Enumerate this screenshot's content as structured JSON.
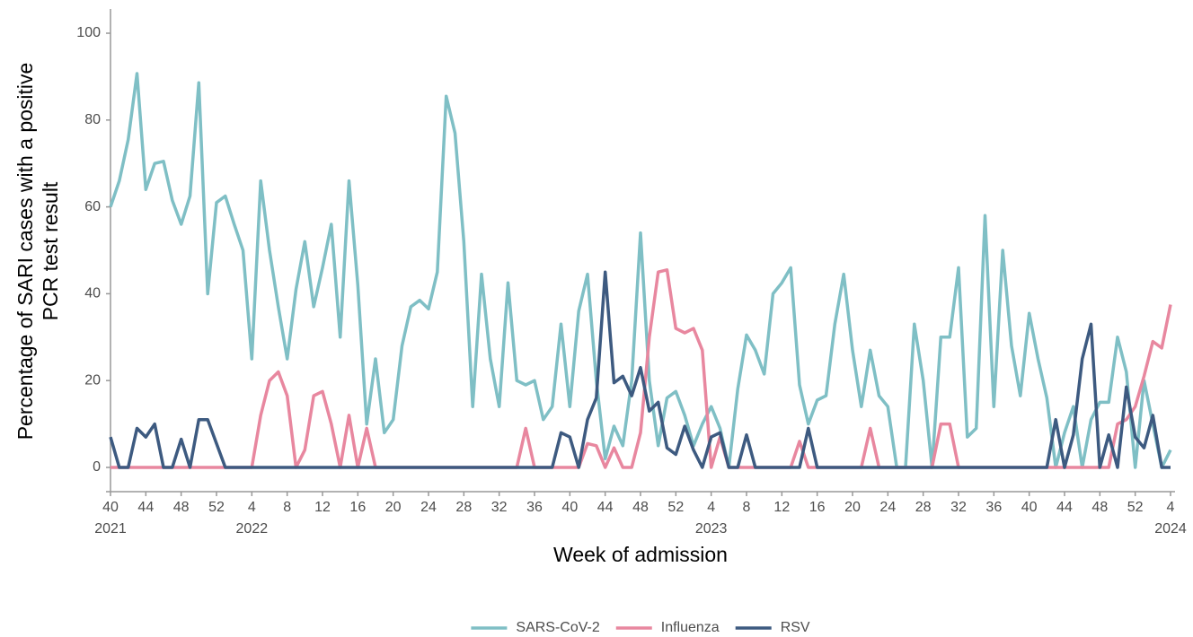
{
  "chart_data": {
    "type": "line",
    "ylabel": [
      "Percentage of SARI cases with a positive",
      "PCR test result"
    ],
    "xlabel": "Week of admission",
    "categories": [
      "40",
      null,
      null,
      null,
      "44",
      null,
      null,
      null,
      "48",
      null,
      null,
      null,
      "52",
      null,
      null,
      null,
      "4",
      null,
      null,
      null,
      "8",
      null,
      null,
      null,
      "12",
      null,
      null,
      null,
      "16",
      null,
      null,
      null,
      "20",
      null,
      null,
      null,
      "24",
      null,
      null,
      null,
      "28",
      null,
      null,
      null,
      "32",
      null,
      null,
      null,
      "36",
      null,
      null,
      null,
      "40",
      null,
      null,
      null,
      "44",
      null,
      null,
      null,
      "48",
      null,
      null,
      null,
      "52",
      null,
      null,
      null,
      "4",
      null,
      null,
      null,
      "8",
      null,
      null,
      null,
      "12",
      null,
      null,
      null,
      "16",
      null,
      null,
      null,
      "20",
      null,
      null,
      null,
      "24",
      null,
      null,
      null,
      "28",
      null,
      null,
      null,
      "32",
      null,
      null,
      null,
      "36",
      null,
      null,
      null,
      "40",
      null,
      null,
      null,
      "44",
      null,
      null,
      null,
      "48",
      null,
      null,
      null,
      "52",
      null,
      null,
      null,
      "4"
    ],
    "year_labels": [
      "2021",
      "2022",
      "2023",
      "2024"
    ],
    "ylim": [
      -5.5,
      105.5
    ],
    "yticks": [
      0,
      20,
      40,
      60,
      80,
      100
    ],
    "grid": false,
    "legend": "bottom",
    "series": [
      {
        "name": "SARS-CoV-2",
        "color": "#7fbfc5",
        "values": [
          60,
          66,
          75.5,
          90.7,
          64,
          70,
          70.5,
          61.5,
          56,
          62.5,
          88.6,
          40,
          61,
          62.5,
          56,
          50,
          25,
          66,
          50,
          37,
          25,
          41,
          52,
          37,
          46,
          56,
          30,
          66,
          42,
          10,
          25,
          8,
          11,
          28,
          37,
          38.5,
          36.5,
          45,
          85.5,
          77,
          52,
          14,
          44.5,
          25,
          14,
          42.5,
          20,
          19,
          20,
          11,
          14,
          33,
          14,
          36,
          44.5,
          20,
          2,
          9.5,
          5,
          20,
          54,
          20,
          5,
          16,
          17.5,
          12,
          5,
          10,
          14,
          9,
          0,
          18,
          30.5,
          27,
          21.5,
          40,
          42.5,
          46,
          19,
          10,
          15.5,
          16.5,
          33,
          44.5,
          27,
          14,
          27,
          16.5,
          14,
          0,
          0,
          33,
          20,
          0,
          30,
          30,
          46,
          7,
          9,
          58,
          14,
          50,
          28,
          16.5,
          35.5,
          25,
          16,
          0,
          8,
          14,
          0,
          11,
          15,
          15,
          30,
          22,
          0,
          20,
          10,
          0,
          4
        ]
      },
      {
        "name": "Influenza",
        "color": "#e8879f",
        "values": [
          0,
          0,
          0,
          0,
          0,
          0,
          0,
          0,
          0,
          0,
          0,
          0,
          0,
          0,
          0,
          0,
          0,
          12,
          20,
          22,
          16.5,
          0,
          4,
          16.5,
          17.5,
          10,
          0,
          12,
          0,
          9,
          0,
          0,
          0,
          0,
          0,
          0,
          0,
          0,
          0,
          0,
          0,
          0,
          0,
          0,
          0,
          0,
          0,
          9,
          0,
          0,
          0,
          0,
          0,
          0,
          5.5,
          5,
          0,
          4.5,
          0,
          0,
          8,
          30,
          45,
          45.5,
          32,
          31,
          32,
          27,
          0,
          7,
          0,
          0,
          0,
          0,
          0,
          0,
          0,
          0,
          6,
          0,
          0,
          0,
          0,
          0,
          0,
          0,
          9,
          0,
          0,
          0,
          0,
          0,
          0,
          0,
          10,
          10,
          0,
          0,
          0,
          0,
          0,
          0,
          0,
          0,
          0,
          0,
          0,
          0,
          0,
          0,
          0,
          0,
          0,
          0,
          10,
          11,
          14,
          21,
          29,
          27.5,
          37.5
        ]
      },
      {
        "name": "RSV",
        "color": "#3d5a80",
        "values": [
          7,
          0,
          0,
          9,
          7,
          10,
          0,
          0,
          6.5,
          0,
          11,
          11,
          5.5,
          0,
          0,
          0,
          0,
          0,
          0,
          0,
          0,
          0,
          0,
          0,
          0,
          0,
          0,
          0,
          0,
          0,
          0,
          0,
          0,
          0,
          0,
          0,
          0,
          0,
          0,
          0,
          0,
          0,
          0,
          0,
          0,
          0,
          0,
          0,
          0,
          0,
          0,
          8,
          7,
          0,
          11,
          16,
          45,
          19.5,
          21,
          16.5,
          23,
          13,
          15,
          4.5,
          3,
          9.5,
          4,
          0,
          7,
          8,
          0,
          0,
          7.5,
          0,
          0,
          0,
          0,
          0,
          0,
          9,
          0,
          0,
          0,
          0,
          0,
          0,
          0,
          0,
          0,
          0,
          0,
          0,
          0,
          0,
          0,
          0,
          0,
          0,
          0,
          0,
          0,
          0,
          0,
          0,
          0,
          0,
          0,
          11,
          0,
          7.5,
          25,
          33,
          0,
          7.5,
          0,
          18.5,
          7,
          4.5,
          12,
          0,
          0
        ]
      }
    ]
  }
}
